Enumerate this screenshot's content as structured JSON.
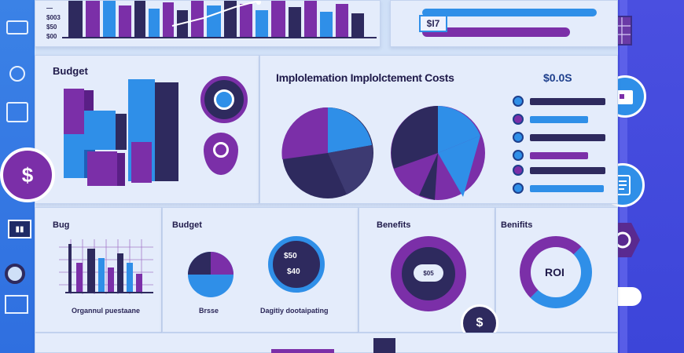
{
  "top": {
    "tick_labels": [
      "—",
      "$003",
      "$50",
      "$00"
    ],
    "gauge_value": "$I7"
  },
  "budget_panel": {
    "title": "Budget"
  },
  "costs_panel": {
    "title": "Implolemation Implolctement Costs",
    "amount": "$0.0S"
  },
  "bottom": {
    "bug_title": "Bug",
    "bug_caption": "Organnul puestaane",
    "budget_title": "Budget",
    "budget_left_caption": "Brsse",
    "budget_right_caption": "Dagitiy dootaipating",
    "donut_labels": [
      "$50",
      "$40"
    ],
    "benefits_title": "Benefits",
    "benefits_center": "$05",
    "benefits2_title": "Benifits",
    "roi_label": "ROI",
    "coin_symbol": "$"
  },
  "side": {
    "dollar_symbol": "$",
    "sound_icon_text": "▮▮"
  },
  "colors": {
    "purple": "#7b2fa8",
    "blue": "#2f8fe8",
    "navy": "#2e2a5e",
    "rail": "#3b82e6"
  }
}
